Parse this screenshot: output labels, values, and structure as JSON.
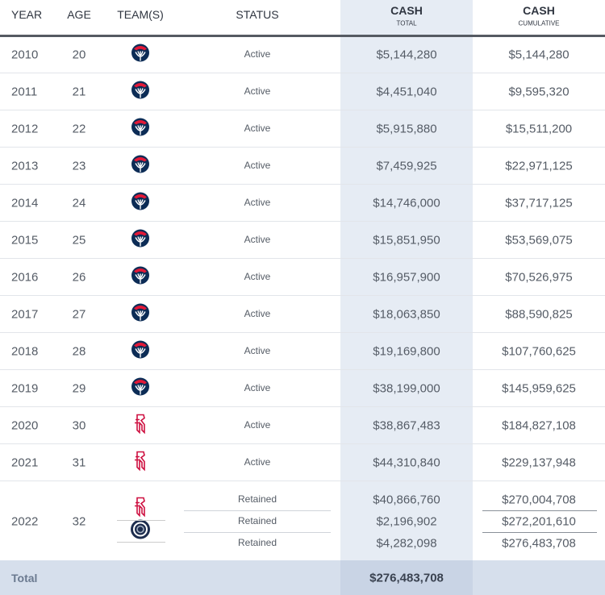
{
  "header": {
    "columns": [
      {
        "label": "YEAR"
      },
      {
        "label": "AGE"
      },
      {
        "label": "TEAM(S)"
      },
      {
        "label": "STATUS"
      },
      {
        "label": "CASH",
        "sublabel": "TOTAL"
      },
      {
        "label": "CASH",
        "sublabel": "CUMULATIVE"
      }
    ]
  },
  "rows": [
    {
      "year": "2010",
      "age": "20",
      "status": "Active",
      "cash": "$5,144,280",
      "cumulative": "$5,144,280"
    },
    {
      "year": "2011",
      "age": "21",
      "status": "Active",
      "cash": "$4,451,040",
      "cumulative": "$9,595,320"
    },
    {
      "year": "2012",
      "age": "22",
      "status": "Active",
      "cash": "$5,915,880",
      "cumulative": "$15,511,200"
    },
    {
      "year": "2013",
      "age": "23",
      "status": "Active",
      "cash": "$7,459,925",
      "cumulative": "$22,971,125"
    },
    {
      "year": "2014",
      "age": "24",
      "status": "Active",
      "cash": "$14,746,000",
      "cumulative": "$37,717,125"
    },
    {
      "year": "2015",
      "age": "25",
      "status": "Active",
      "cash": "$15,851,950",
      "cumulative": "$53,569,075"
    },
    {
      "year": "2016",
      "age": "26",
      "status": "Active",
      "cash": "$16,957,900",
      "cumulative": "$70,526,975"
    },
    {
      "year": "2017",
      "age": "27",
      "status": "Active",
      "cash": "$18,063,850",
      "cumulative": "$88,590,825"
    },
    {
      "year": "2018",
      "age": "28",
      "status": "Active",
      "cash": "$19,169,800",
      "cumulative": "$107,760,625"
    },
    {
      "year": "2019",
      "age": "29",
      "status": "Active",
      "cash": "$38,199,000",
      "cumulative": "$145,959,625"
    },
    {
      "year": "2020",
      "age": "30",
      "status": "Active",
      "cash": "$38,867,483",
      "cumulative": "$184,827,108"
    },
    {
      "year": "2021",
      "age": "31",
      "status": "Active",
      "cash": "$44,310,840",
      "cumulative": "$229,137,948"
    }
  ],
  "split_row": {
    "year": "2022",
    "age": "32",
    "entries": [
      {
        "status": "Retained",
        "cash": "$40,866,760",
        "cumulative": "$270,004,708"
      },
      {
        "status": "Retained",
        "cash": "$2,196,902",
        "cumulative": "$272,201,610"
      },
      {
        "status": "Retained",
        "cash": "$4,282,098",
        "cumulative": "$276,483,708"
      }
    ]
  },
  "total": {
    "label": "Total",
    "cash": "$276,483,708"
  }
}
